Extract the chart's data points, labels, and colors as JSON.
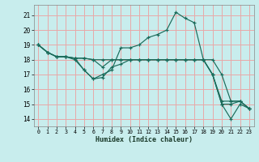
{
  "xlabel": "Humidex (Indice chaleur)",
  "bg_color": "#c8eded",
  "grid_color": "#e8a8a8",
  "line_color": "#1a6b5a",
  "xlim": [
    -0.5,
    23.5
  ],
  "ylim": [
    13.5,
    21.7
  ],
  "yticks": [
    14,
    15,
    16,
    17,
    18,
    19,
    20,
    21
  ],
  "xticks": [
    0,
    1,
    2,
    3,
    4,
    5,
    6,
    7,
    8,
    9,
    10,
    11,
    12,
    13,
    14,
    15,
    16,
    17,
    18,
    19,
    20,
    21,
    22,
    23
  ],
  "lines": [
    [
      19.0,
      18.5,
      18.2,
      18.2,
      18.1,
      17.3,
      16.7,
      17.0,
      17.3,
      18.8,
      18.8,
      19.0,
      19.5,
      19.7,
      20.0,
      21.2,
      20.8,
      20.5,
      18.0,
      17.0,
      15.0,
      14.0,
      15.0,
      14.7
    ],
    [
      19.0,
      18.5,
      18.2,
      18.2,
      18.1,
      18.1,
      18.0,
      17.5,
      18.0,
      18.0,
      18.0,
      18.0,
      18.0,
      18.0,
      18.0,
      18.0,
      18.0,
      18.0,
      18.0,
      17.0,
      15.2,
      15.2,
      15.2,
      14.7
    ],
    [
      19.0,
      18.5,
      18.2,
      18.2,
      18.1,
      18.1,
      18.0,
      18.0,
      18.0,
      18.0,
      18.0,
      18.0,
      18.0,
      18.0,
      18.0,
      18.0,
      18.0,
      18.0,
      18.0,
      18.0,
      17.0,
      15.2,
      15.2,
      14.7
    ],
    [
      19.0,
      18.5,
      18.2,
      18.2,
      18.0,
      17.3,
      16.7,
      16.8,
      17.5,
      17.7,
      18.0,
      18.0,
      18.0,
      18.0,
      18.0,
      18.0,
      18.0,
      18.0,
      18.0,
      17.0,
      15.0,
      15.0,
      15.2,
      14.7
    ]
  ]
}
